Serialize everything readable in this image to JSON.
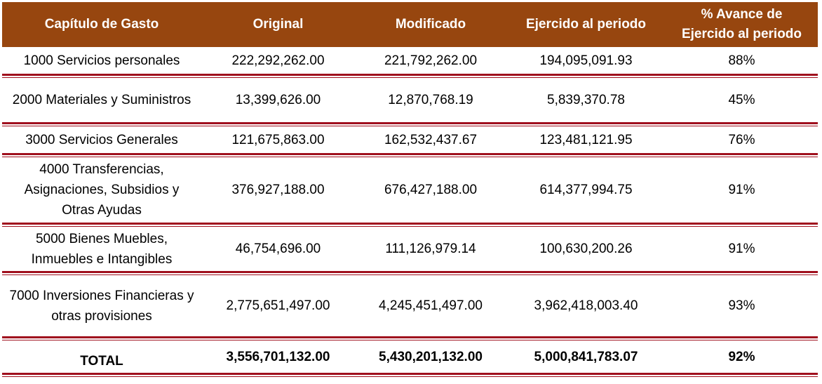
{
  "table": {
    "headers": [
      "Capítulo de Gasto",
      "Original",
      "Modificado",
      "Ejercido al periodo",
      "% Avance de\nEjercido al periodo"
    ],
    "rows": [
      {
        "capitulo": "1000 Servicios personales",
        "original": "222,292,262.00",
        "modificado": "221,792,262.00",
        "ejercido": "194,095,091.93",
        "avance": "88%"
      },
      {
        "capitulo": "2000 Materiales y Suministros",
        "original": "13,399,626.00",
        "modificado": "12,870,768.19",
        "ejercido": "5,839,370.78",
        "avance": "45%"
      },
      {
        "capitulo": "3000 Servicios Generales",
        "original": "121,675,863.00",
        "modificado": "162,532,437.67",
        "ejercido": "123,481,121.95",
        "avance": "76%"
      },
      {
        "capitulo": "4000 Transferencias, Asignaciones, Subsidios y Otras Ayudas",
        "original": "376,927,188.00",
        "modificado": "676,427,188.00",
        "ejercido": "614,377,994.75",
        "avance": "91%"
      },
      {
        "capitulo": "5000 Bienes Muebles, Inmuebles e Intangibles",
        "original": "46,754,696.00",
        "modificado": "111,126,979.14",
        "ejercido": "100,630,200.26",
        "avance": "91%"
      },
      {
        "capitulo": "7000 Inversiones Financieras y otras provisiones",
        "original": "2,775,651,497.00",
        "modificado": "4,245,451,497.00",
        "ejercido": "3,962,418,003.40",
        "avance": "93%"
      }
    ],
    "total": {
      "capitulo": "TOTAL",
      "original": "3,556,701,132.00",
      "modificado": "5,430,201,132.00",
      "ejercido": "5,000,841,783.07",
      "avance": "92%"
    }
  },
  "colors": {
    "header_bg": "#97460f",
    "header_text": "#ffffff",
    "rule": "#a0101e"
  }
}
